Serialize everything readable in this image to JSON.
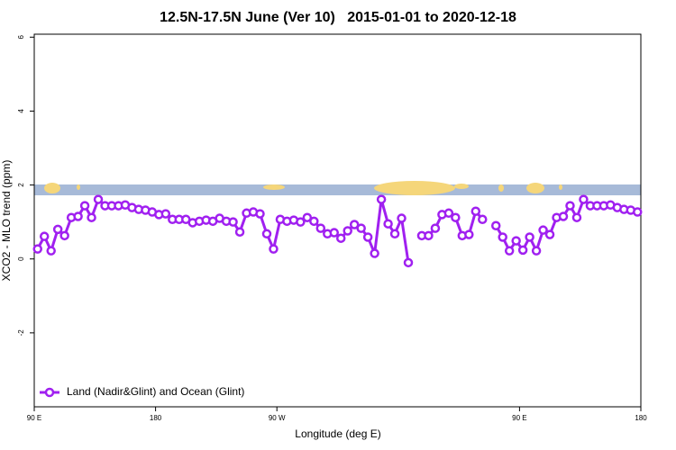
{
  "chart_data": {
    "type": "line",
    "title": "12.5N-17.5N June (Ver 10)   2015-01-01 to 2020-12-18",
    "x_label": "Longitude (deg E)",
    "y_label": "XCO2 - MLO trend (ppm)",
    "x": [
      92.5,
      97.5,
      102.5,
      107.5,
      112.5,
      117.5,
      122.5,
      127.5,
      132.5,
      137.5,
      142.5,
      147.5,
      152.5,
      157.5,
      162.5,
      167.5,
      172.5,
      177.5,
      182.5,
      187.5,
      192.5,
      197.5,
      202.5,
      207.5,
      212.5,
      217.5,
      222.5,
      227.5,
      232.5,
      237.5,
      242.5,
      247.5,
      252.5,
      257.5,
      262.5,
      267.5,
      272.5,
      277.5,
      282.5,
      287.5,
      292.5,
      297.5,
      302.5,
      307.5,
      312.5,
      317.5,
      322.5,
      327.5,
      332.5,
      337.5,
      342.5,
      347.5,
      352.5,
      357.5,
      362.5,
      367.5,
      372.5,
      377.5,
      382.5,
      387.5,
      392.5,
      397.5,
      402.5,
      407.5,
      412.5,
      417.5,
      422.5,
      427.5,
      432.5,
      437.5,
      442.5,
      447.5,
      452.5,
      457.5,
      462.5,
      467.5,
      472.5,
      477.5,
      482.5,
      487.5,
      492.5,
      497.5,
      502.5,
      507.5,
      512.5,
      517.5,
      522.5,
      527.5,
      532.5,
      537.5
    ],
    "series": [
      {
        "name": "Land (Nadir&Glint) and Ocean (Glint)",
        "color": "#a020f0",
        "values": [
          0.27,
          0.61,
          0.22,
          0.8,
          0.63,
          1.12,
          1.15,
          1.44,
          1.12,
          1.61,
          1.44,
          1.44,
          1.44,
          1.46,
          1.39,
          1.34,
          1.32,
          1.27,
          1.2,
          1.22,
          1.07,
          1.07,
          1.07,
          0.98,
          1.02,
          1.05,
          1.02,
          1.1,
          1.02,
          1.0,
          0.73,
          1.24,
          1.27,
          1.22,
          0.68,
          0.27,
          1.07,
          1.02,
          1.05,
          1.0,
          1.12,
          1.02,
          0.83,
          0.68,
          0.71,
          0.56,
          0.76,
          0.93,
          0.83,
          0.59,
          0.15,
          1.61,
          0.95,
          0.68,
          1.1,
          -0.1,
          null,
          0.63,
          0.63,
          0.83,
          1.2,
          1.24,
          1.12,
          0.63,
          0.66,
          1.29,
          1.07,
          null,
          0.9,
          0.59,
          0.22,
          0.49,
          0.24,
          0.59,
          0.22,
          0.78,
          0.66,
          1.12,
          1.15,
          1.44,
          1.12,
          1.61,
          1.44,
          1.44,
          1.44,
          1.46,
          1.39,
          1.34,
          1.32,
          1.27
        ]
      }
    ],
    "xlim": [
      90,
      540
    ],
    "xticks": [
      {
        "value": 90,
        "label": "90 E"
      },
      180,
      {
        "value": 270,
        "label": "90 W"
      },
      {
        "value": 450,
        "label": "90 E"
      },
      {
        "value": 540,
        "label": "180"
      }
    ],
    "ylim": [
      -4,
      6.08
    ],
    "yticks": [
      -2,
      0,
      2,
      4,
      6
    ],
    "legend": "bottom-left"
  }
}
